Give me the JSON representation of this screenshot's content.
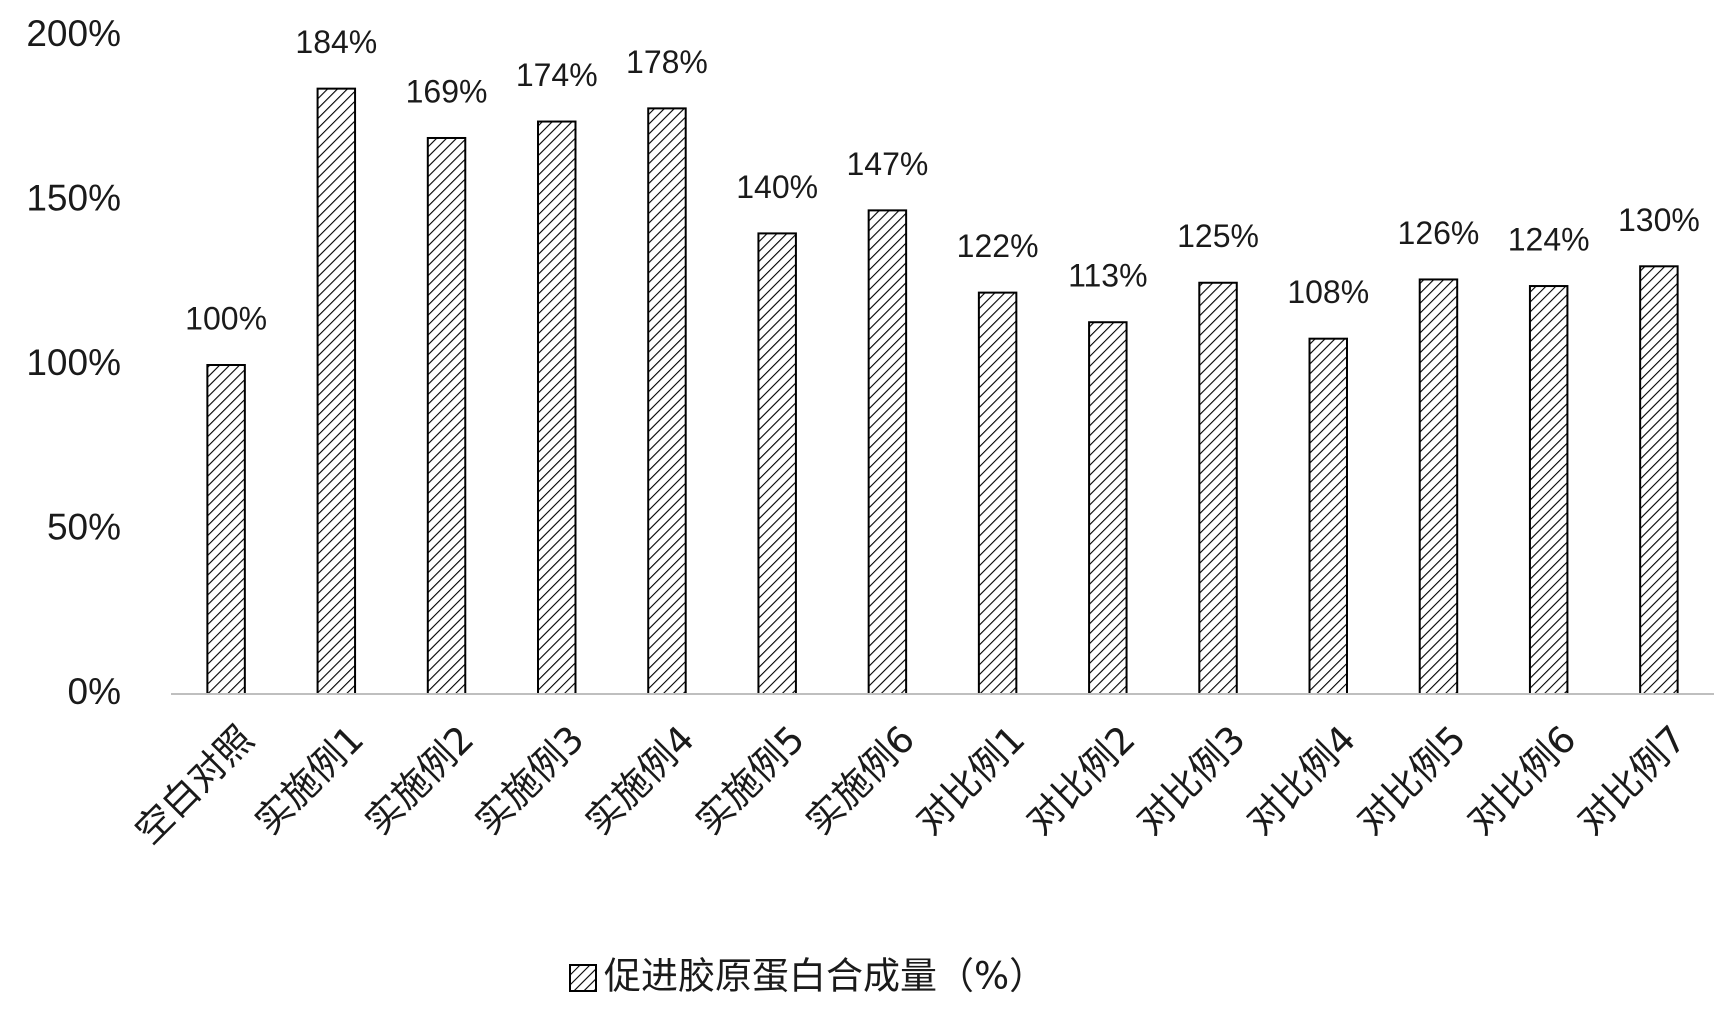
{
  "chart_data": {
    "type": "bar",
    "categories": [
      "空白对照",
      "实施例1",
      "实施例2",
      "实施例3",
      "实施例4",
      "实施例5",
      "实施例6",
      "对比例1",
      "对比例2",
      "对比例3",
      "对比例4",
      "对比例5",
      "对比例6",
      "对比例7"
    ],
    "series": [
      {
        "name": "促进胶原蛋白合成量（%）",
        "color": "#000000",
        "values": [
          100,
          184,
          169,
          174,
          178,
          140,
          147,
          122,
          113,
          125,
          108,
          126,
          124,
          130
        ],
        "value_labels": [
          "100%",
          "184%",
          "169%",
          "174%",
          "178%",
          "140%",
          "147%",
          "122%",
          "113%",
          "125%",
          "108%",
          "126%",
          "124%",
          "130%"
        ]
      }
    ],
    "ylim": [
      0,
      200
    ],
    "yticks": [
      {
        "value": 0,
        "label": "0%"
      },
      {
        "value": 50,
        "label": "50%"
      },
      {
        "value": 100,
        "label": "100%"
      },
      {
        "value": 150,
        "label": "150%"
      },
      {
        "value": 200,
        "label": "200%"
      }
    ],
    "grid": false,
    "legend": "bottom"
  }
}
